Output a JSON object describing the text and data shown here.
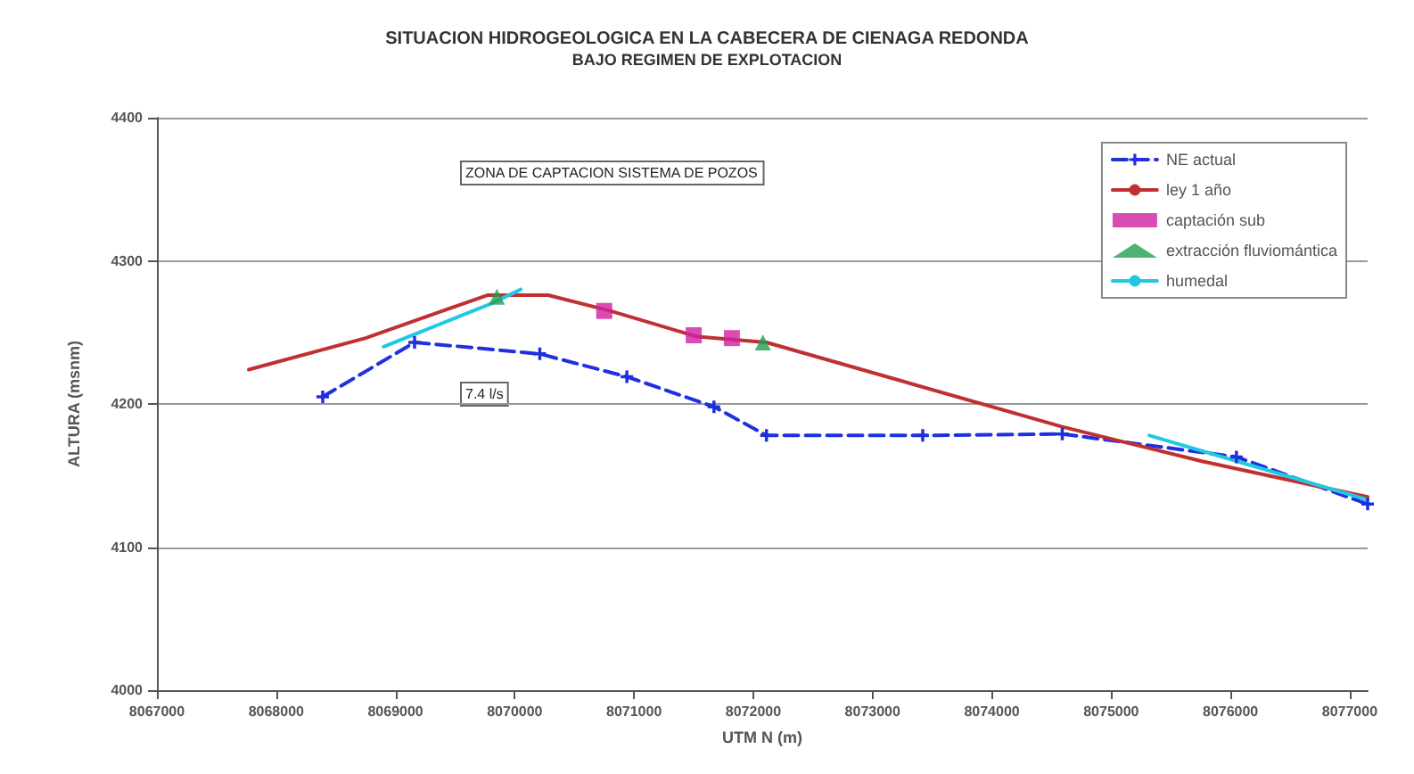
{
  "chart_data": {
    "type": "line",
    "title": "SITUACION HIDROGEOLOGICA EN LA CABECERA DE CIENAGA REDONDA",
    "subtitle": "BAJO REGIMEN DE EXPLOTACION",
    "xlabel": "UTM N (m)",
    "ylabel": "ALTURA (msnm)",
    "xlim": [
      8067000,
      8077150
    ],
    "xticks": [
      8067000,
      8068000,
      8069000,
      8070000,
      8071000,
      8072000,
      8073000,
      8074000,
      8075000,
      8076000,
      8077000
    ],
    "ylim": [
      4000,
      4400
    ],
    "yticks": [
      4000,
      4100,
      4200,
      4300,
      4400
    ],
    "grid": "y",
    "legend": "top right",
    "series": [
      {
        "name": "NE actual",
        "type": "line",
        "color": "#2030e0",
        "line_style": "dashed",
        "marker": "cross",
        "x": [
          8068390,
          8069160,
          8070210,
          8070940,
          8071670,
          8072110,
          8073420,
          8074590,
          8076050,
          8077150
        ],
        "values": [
          4205,
          4243,
          4235,
          4219,
          4198,
          4178,
          4178,
          4179,
          4163,
          4130
        ]
      },
      {
        "name": "ley 1 año",
        "type": "line",
        "color": "#c03030",
        "line_style": "solid",
        "marker": "none",
        "x": [
          8067770,
          8068750,
          8069770,
          8070280,
          8070800,
          8071530,
          8072110,
          8074590,
          8075760,
          8077150
        ],
        "values": [
          4224,
          4246,
          4276,
          4276,
          4265,
          4247,
          4243,
          4184,
          4160,
          4135
        ]
      },
      {
        "name": "captación sub",
        "type": "scatter",
        "color": "#d020a0",
        "marker": "square",
        "x": [
          8070750,
          8071500,
          8071820
        ],
        "values": [
          4265,
          4248,
          4246
        ]
      },
      {
        "name": "extracción fluviomántica",
        "type": "scatter",
        "color": "#20a050",
        "marker": "triangle",
        "x": [
          8069850,
          8072080
        ],
        "values": [
          4275,
          4243
        ]
      },
      {
        "name": "humedal",
        "type": "line",
        "color": "#20c8e0",
        "line_style": "solid",
        "marker": "none",
        "x": [
          8068900,
          8069800,
          8070050,
          8070100,
          8075320,
          8077150
        ],
        "values": [
          4240,
          4270,
          4280,
          null,
          4178,
          4133
        ]
      }
    ],
    "annotations": [
      "ZONA DE CAPTACION SISTEMA DE POZOS",
      "7.4 l/s"
    ]
  }
}
